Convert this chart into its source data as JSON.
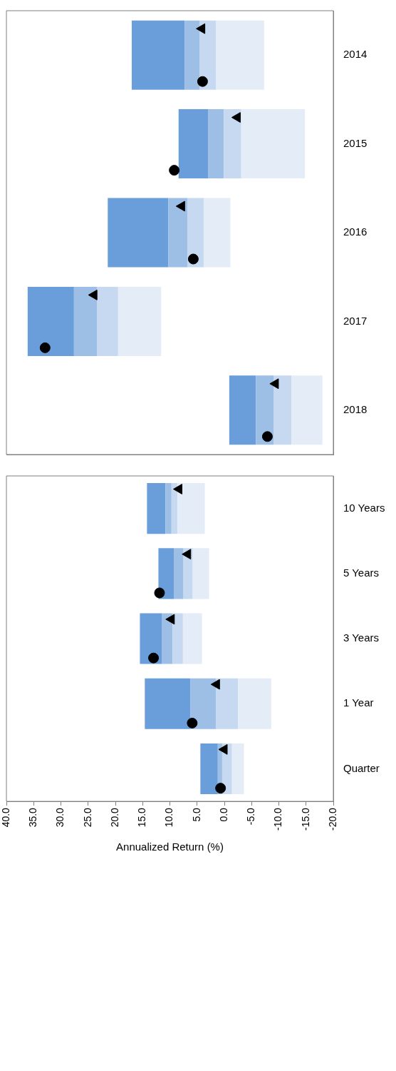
{
  "chart_data": [
    {
      "type": "bar",
      "orientation": "horizontal",
      "categories": [
        "2014",
        "2015",
        "2016",
        "2017",
        "2018"
      ],
      "series": [
        {
          "color": "#e3ecf7",
          "base": [
            -7.3,
            -14.8,
            -1.1,
            11.6,
            -18.0
          ],
          "values": [
            8.8,
            11.7,
            4.9,
            7.9,
            5.7
          ]
        },
        {
          "color": "#c6d9f0",
          "base": [
            1.5,
            -3.1,
            3.8,
            19.5,
            -12.3
          ],
          "values": [
            3.0,
            3.2,
            3.0,
            3.9,
            3.2
          ]
        },
        {
          "color": "#9dbfe5",
          "base": [
            4.5,
            0.1,
            6.8,
            23.4,
            -9.1
          ],
          "values": [
            2.8,
            2.9,
            3.5,
            4.2,
            3.3
          ]
        },
        {
          "color": "#6a9edb",
          "base": [
            7.3,
            3.0,
            10.3,
            27.6,
            -5.8
          ],
          "values": [
            9.7,
            5.4,
            11.1,
            8.5,
            4.9
          ]
        },
        {
          "type": "scatter",
          "marker": "triangle",
          "color": "#000000",
          "values": [
            4.1,
            -2.4,
            7.8,
            23.9,
            -9.4
          ]
        },
        {
          "type": "scatter",
          "marker": "circle",
          "color": "#000000",
          "values": [
            4.0,
            9.2,
            5.7,
            32.9,
            -7.9
          ]
        }
      ],
      "xlim": [
        40,
        -20
      ],
      "tick_labels": "y",
      "grid": false,
      "legend": false
    },
    {
      "type": "bar",
      "orientation": "horizontal",
      "categories": [
        "10 Years",
        "5 Years",
        "3 Years",
        "1 Year",
        "Quarter"
      ],
      "series": [
        {
          "color": "#e3ecf7",
          "base": [
            3.6,
            2.8,
            4.1,
            -8.6,
            -3.6
          ],
          "values": [
            5.0,
            3.0,
            3.5,
            6.1,
            2.2
          ]
        },
        {
          "color": "#c6d9f0",
          "base": [
            8.6,
            5.8,
            7.6,
            -2.5,
            -1.4
          ],
          "values": [
            1.1,
            1.7,
            1.9,
            4.0,
            1.8
          ]
        },
        {
          "color": "#9dbfe5",
          "base": [
            9.7,
            7.5,
            9.5,
            1.5,
            0.4
          ],
          "values": [
            1.1,
            1.7,
            2.0,
            4.7,
            0.8
          ]
        },
        {
          "color": "#6a9edb",
          "base": [
            10.8,
            9.2,
            11.5,
            6.2,
            1.2
          ],
          "values": [
            3.4,
            2.9,
            4.0,
            8.4,
            3.2
          ]
        },
        {
          "type": "scatter",
          "marker": "triangle",
          "color": "#000000",
          "values": [
            8.3,
            6.7,
            9.7,
            1.4,
            0.0
          ]
        },
        {
          "type": "scatter",
          "marker": "circle",
          "color": "#000000",
          "values": [
            null,
            11.9,
            13.0,
            5.9,
            0.7
          ]
        }
      ],
      "xlim": [
        40,
        -20
      ],
      "xticks": [
        {
          "value": 40,
          "label": "40.0"
        },
        {
          "value": 35,
          "label": "35.0"
        },
        {
          "value": 30,
          "label": "30.0"
        },
        {
          "value": 25,
          "label": "25.0"
        },
        {
          "value": 20,
          "label": "20.0"
        },
        {
          "value": 15,
          "label": "15.0"
        },
        {
          "value": 10,
          "label": "10.0"
        },
        {
          "value": 5,
          "label": "5.0"
        },
        {
          "value": 0,
          "label": "0.0"
        },
        {
          "value": -5,
          "label": "-5.0"
        },
        {
          "value": -10,
          "label": "-10.0"
        },
        {
          "value": -15,
          "label": "-15.0"
        },
        {
          "value": -20,
          "label": "-20.0"
        }
      ],
      "xlabel": "Annualized Return (%)",
      "grid": false,
      "legend": false
    }
  ]
}
